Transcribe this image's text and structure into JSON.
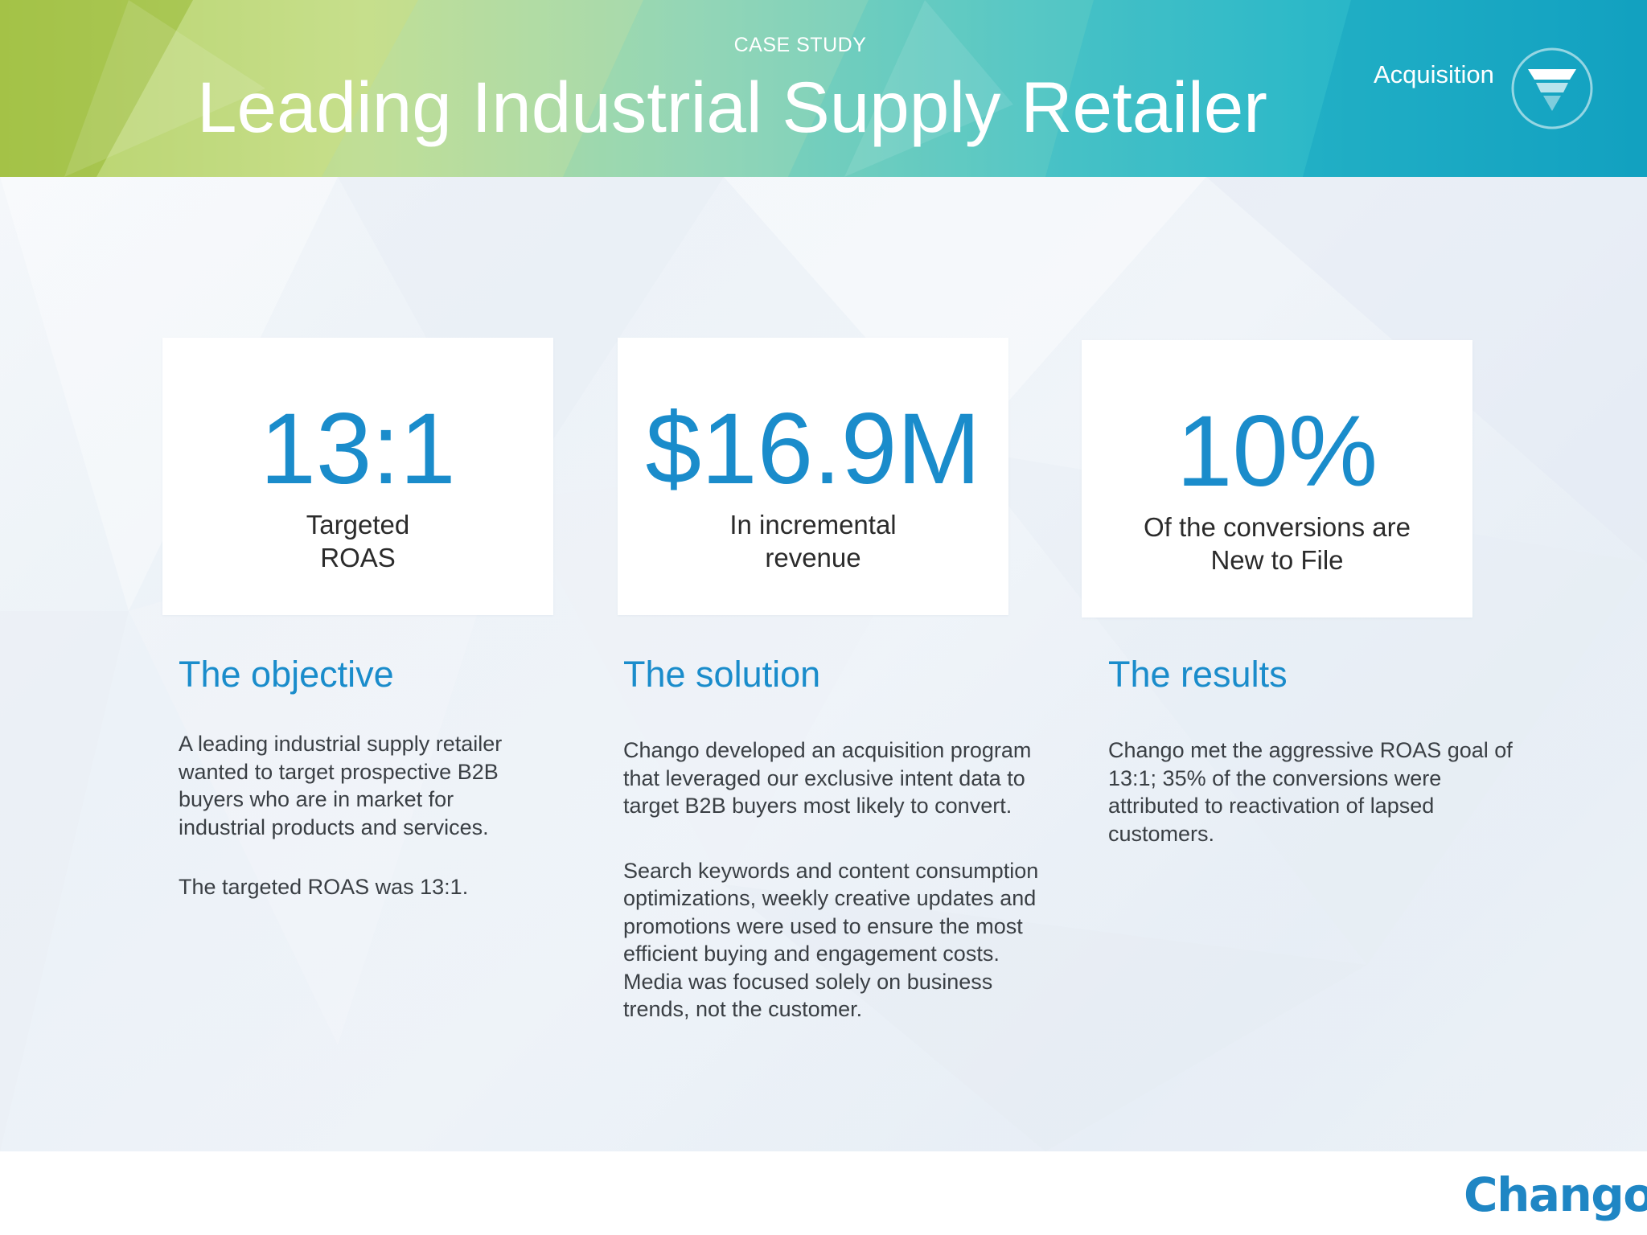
{
  "header": {
    "kicker": "CASE STUDY",
    "title": "Leading Industrial Supply Retailer",
    "tag": "Acquisition",
    "tag_icon": "funnel-icon"
  },
  "stats": [
    {
      "value": "13:1",
      "caption_line1": "Targeted",
      "caption_line2": "ROAS"
    },
    {
      "value": "$16.9M",
      "caption_line1": "In incremental",
      "caption_line2": "revenue"
    },
    {
      "value": "10%",
      "caption_line1": "Of the conversions are",
      "caption_line2": "New to File"
    }
  ],
  "sections": {
    "objective": {
      "title": "The objective",
      "paragraphs": [
        "A leading industrial supply retailer wanted to target prospective B2B buyers who are in market for industrial products and services.",
        "The targeted ROAS was 13:1."
      ]
    },
    "solution": {
      "title": "The solution",
      "paragraphs": [
        "Chango developed an acquisition program that leveraged our exclusive intent data to target B2B buyers most likely to convert.",
        "Search keywords and content consumption optimizations, weekly creative updates and promotions were used to ensure the most efficient buying and engagement costs.  Media was focused solely on business trends, not the customer."
      ]
    },
    "results": {
      "title": "The results",
      "paragraphs": [
        "Chango met the aggressive ROAS goal of 13:1; 35% of the conversions were attributed to reactivation of lapsed customers."
      ]
    }
  },
  "footer": {
    "logo": "Chango"
  },
  "colors": {
    "accent": "#1a8ccb",
    "body_text": "#3a3f44",
    "header_gradient_start": "#aac850",
    "header_gradient_end": "#14a3c1"
  }
}
